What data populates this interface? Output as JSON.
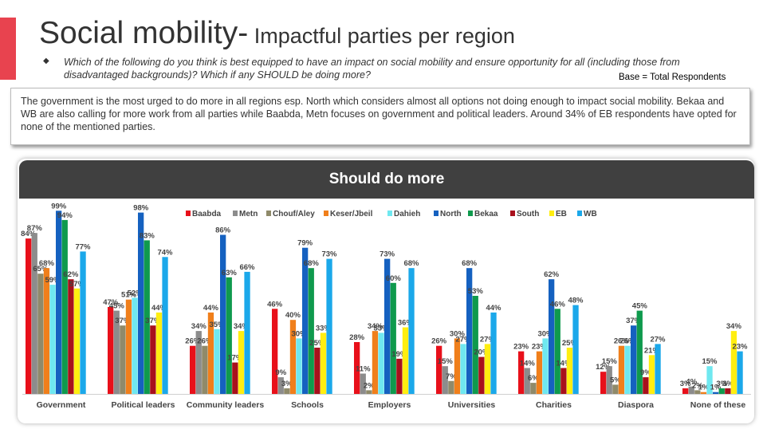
{
  "header": {
    "title_main": "Social mobility-",
    "title_sub": " Impactful parties per region",
    "question": "Which of the following do you think is best equipped to have an impact on social mobility and ensure opportunity for all (including those from disadvantaged backgrounds)? Which if any SHOULD be doing more?",
    "base": "Base = Total Respondents",
    "accent_color": "#e8434f"
  },
  "summary": "The government is the most urged to do more in all regions esp. North which considers almost all options not doing enough to impact social mobility. Bekaa and WB are also calling for more work from all parties while Baabda, Metn focuses on government and political leaders. Around 34% of EB respondents have opted for none of the mentioned parties.",
  "chart_data": {
    "type": "bar",
    "title": "Should do more",
    "categories": [
      "Government",
      "Political leaders",
      "Community leaders",
      "Schools",
      "Employers",
      "Universities",
      "Charities",
      "Diaspora",
      "None of these"
    ],
    "value_suffix": "%",
    "ylim": [
      0,
      100
    ],
    "grid": false,
    "legend_position": "top",
    "series": [
      {
        "name": "Baabda",
        "color": "#e8101a",
        "values": [
          84,
          47,
          26,
          46,
          28,
          26,
          23,
          12,
          3
        ]
      },
      {
        "name": "Metn",
        "color": "#8c8c8c",
        "values": [
          87,
          45,
          34,
          9,
          11,
          15,
          14,
          15,
          4
        ]
      },
      {
        "name": "Chouf/Aley",
        "color": "#8f8a6a",
        "values": [
          65,
          37,
          26,
          3,
          2,
          7,
          6,
          5,
          2
        ]
      },
      {
        "name": "Keser/Jbeil",
        "color": "#f07f1b",
        "values": [
          68,
          51,
          44,
          40,
          34,
          30,
          23,
          26,
          1
        ]
      },
      {
        "name": "Dahieh",
        "color": "#6fe8f0",
        "values": [
          59,
          52,
          35,
          30,
          33,
          27,
          30,
          26,
          15
        ]
      },
      {
        "name": "North",
        "color": "#1561c0",
        "values": [
          99,
          98,
          86,
          79,
          73,
          68,
          62,
          37,
          1
        ]
      },
      {
        "name": "Bekaa",
        "color": "#0f9a4d",
        "values": [
          94,
          83,
          63,
          68,
          60,
          53,
          46,
          45,
          3
        ]
      },
      {
        "name": "South",
        "color": "#a8101c",
        "values": [
          62,
          37,
          17,
          25,
          19,
          20,
          14,
          9,
          3
        ]
      },
      {
        "name": "EB",
        "color": "#ffee10",
        "values": [
          57,
          44,
          34,
          33,
          36,
          27,
          25,
          21,
          34
        ]
      },
      {
        "name": "WB",
        "color": "#1ba8ea",
        "values": [
          77,
          74,
          66,
          73,
          68,
          44,
          48,
          27,
          23
        ]
      }
    ]
  }
}
